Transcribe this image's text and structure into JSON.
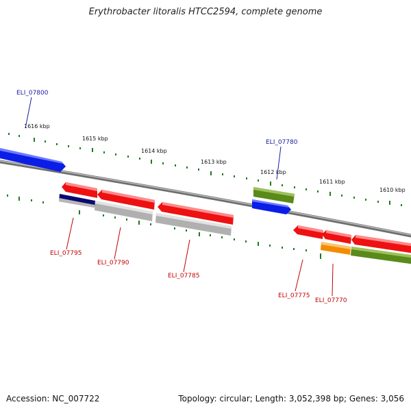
{
  "title": "Erythrobacter litoralis HTCC2594, complete genome",
  "footer": {
    "accession": "Accession: NC_007722",
    "topology": "Topology: circular; Length: 3,052,398 bp; Genes: 3,056"
  },
  "colors": {
    "backbone": "#7a7a7a",
    "tick": "#1f7a1f",
    "blue_gene": "#0a1ee6",
    "red_gene": "#ee1111",
    "olive_gene": "#5a8a1a",
    "orange_gene": "#f28c00",
    "gray_gene": "#b0b0b0",
    "navy_gene": "#0a0a6e",
    "label_blue": "#1a1aa0",
    "label_red": "#c00000"
  },
  "scale_labels": [
    "1616 kbp",
    "1615 kbp",
    "1614 kbp",
    "1613 kbp",
    "1612 kbp",
    "1611 kbp",
    "1610 kbp"
  ],
  "gene_labels": {
    "ELI_07800": "ELI_07800",
    "ELI_07780": "ELI_07780",
    "ELI_07795": "ELI_07795",
    "ELI_07790": "ELI_07790",
    "ELI_07785": "ELI_07785",
    "ELI_07775": "ELI_07775",
    "ELI_07770": "ELI_07770"
  }
}
